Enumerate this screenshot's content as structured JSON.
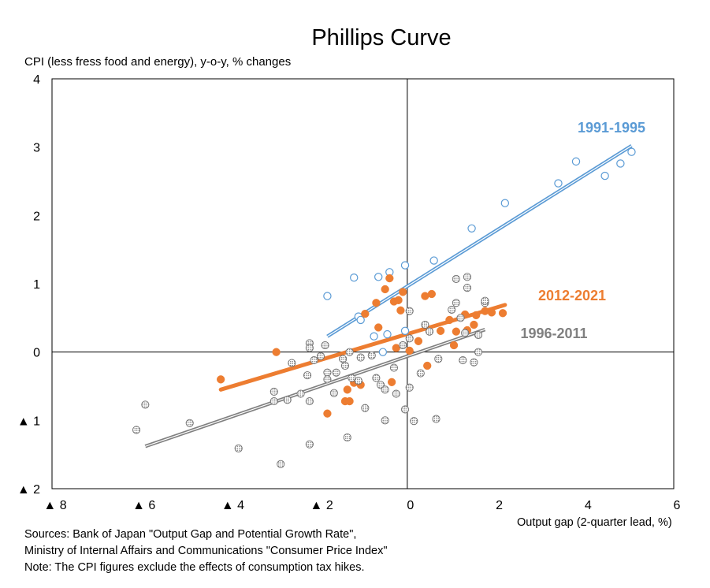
{
  "chart_data": {
    "type": "scatter",
    "title": "Phillips Curve",
    "ylabel": "CPI (less fress food and energy), y-o-y, % changes",
    "xlabel": "Output gap (2-quarter lead, %)",
    "xlim": [
      -8,
      6
    ],
    "ylim": [
      -2,
      4
    ],
    "x_ticks": [
      -8,
      -6,
      -4,
      -2,
      0,
      2,
      4,
      6
    ],
    "y_ticks": [
      4,
      3,
      2,
      1,
      0,
      -1,
      -2
    ],
    "x_tick_labels": [
      "▲ 8",
      "▲ 6",
      "▲ 4",
      "▲ 2",
      "0",
      "2",
      "4",
      "6"
    ],
    "y_tick_labels": [
      "4",
      "3",
      "2",
      "1",
      "0",
      "▲ 1",
      "▲ 2"
    ],
    "grid": false,
    "series": [
      {
        "name": "1991-1995",
        "color": "#5b9bd5",
        "marker": "open-circle",
        "points": [
          [
            -1.8,
            0.82
          ],
          [
            -1.2,
            1.09
          ],
          [
            -1.1,
            0.52
          ],
          [
            -1.05,
            0.47
          ],
          [
            -0.75,
            0.23
          ],
          [
            -0.65,
            1.1
          ],
          [
            -0.55,
            0.0
          ],
          [
            -0.45,
            0.26
          ],
          [
            -0.4,
            1.17
          ],
          [
            -0.05,
            1.27
          ],
          [
            -0.05,
            0.31
          ],
          [
            0.6,
            1.34
          ],
          [
            1.45,
            1.81
          ],
          [
            2.2,
            2.18
          ],
          [
            3.4,
            2.47
          ],
          [
            3.8,
            2.79
          ],
          [
            4.45,
            2.58
          ],
          [
            4.8,
            2.76
          ],
          [
            5.05,
            2.93
          ]
        ],
        "fit": [
          [
            -1.8,
            0.23
          ],
          [
            5.05,
            3.02
          ]
        ]
      },
      {
        "name": "2012-2021",
        "color": "#ed7d31",
        "marker": "filled-circle",
        "points": [
          [
            -4.2,
            -0.4
          ],
          [
            -2.95,
            0.0
          ],
          [
            -1.8,
            -0.9
          ],
          [
            -1.4,
            -0.72
          ],
          [
            -1.35,
            -0.55
          ],
          [
            -1.3,
            -0.72
          ],
          [
            -1.2,
            -0.45
          ],
          [
            -1.05,
            -0.48
          ],
          [
            -0.95,
            0.56
          ],
          [
            -0.7,
            0.72
          ],
          [
            -0.65,
            0.36
          ],
          [
            -0.5,
            0.92
          ],
          [
            -0.4,
            1.08
          ],
          [
            -0.35,
            -0.44
          ],
          [
            -0.3,
            0.74
          ],
          [
            -0.25,
            0.06
          ],
          [
            -0.2,
            0.76
          ],
          [
            -0.15,
            0.61
          ],
          [
            -0.1,
            0.88
          ],
          [
            0.05,
            0.02
          ],
          [
            0.25,
            0.16
          ],
          [
            0.4,
            0.82
          ],
          [
            0.45,
            -0.2
          ],
          [
            0.55,
            0.85
          ],
          [
            0.75,
            0.31
          ],
          [
            0.95,
            0.47
          ],
          [
            1.05,
            0.1
          ],
          [
            1.1,
            0.3
          ],
          [
            1.3,
            0.55
          ],
          [
            1.35,
            0.32
          ],
          [
            1.5,
            0.4
          ],
          [
            1.55,
            0.54
          ],
          [
            1.75,
            0.6
          ],
          [
            1.9,
            0.58
          ],
          [
            2.15,
            0.57
          ]
        ],
        "fit": [
          [
            -4.2,
            -0.55
          ],
          [
            2.2,
            0.69
          ]
        ]
      },
      {
        "name": "1996-2011",
        "color": "#808080",
        "marker": "hatched-circle",
        "points": [
          [
            -5.9,
            -0.77
          ],
          [
            -6.1,
            -1.14
          ],
          [
            -4.9,
            -1.04
          ],
          [
            -3.8,
            -1.41
          ],
          [
            -3.0,
            -0.58
          ],
          [
            -3.0,
            -0.72
          ],
          [
            -2.85,
            -1.64
          ],
          [
            -2.7,
            -0.7
          ],
          [
            -2.6,
            -0.16
          ],
          [
            -2.4,
            -0.61
          ],
          [
            -2.25,
            -0.34
          ],
          [
            -2.2,
            -0.72
          ],
          [
            -2.2,
            0.13
          ],
          [
            -2.2,
            0.06
          ],
          [
            -2.2,
            -1.35
          ],
          [
            -2.1,
            -0.12
          ],
          [
            -1.95,
            -0.06
          ],
          [
            -1.85,
            0.1
          ],
          [
            -1.8,
            -0.3
          ],
          [
            -1.8,
            -0.4
          ],
          [
            -1.65,
            -0.6
          ],
          [
            -1.6,
            -0.3
          ],
          [
            -1.45,
            -0.1
          ],
          [
            -1.4,
            -0.2
          ],
          [
            -1.35,
            -1.25
          ],
          [
            -1.3,
            0.0
          ],
          [
            -1.25,
            -0.38
          ],
          [
            -1.1,
            -0.42
          ],
          [
            -1.05,
            -0.08
          ],
          [
            -0.95,
            -0.82
          ],
          [
            -0.8,
            -0.05
          ],
          [
            -0.7,
            -0.38
          ],
          [
            -0.6,
            -0.48
          ],
          [
            -0.5,
            -1.0
          ],
          [
            -0.5,
            -0.55
          ],
          [
            -0.3,
            -0.23
          ],
          [
            -0.25,
            -0.61
          ],
          [
            -0.1,
            0.1
          ],
          [
            -0.05,
            -0.84
          ],
          [
            0.05,
            -0.52
          ],
          [
            0.05,
            0.2
          ],
          [
            0.05,
            0.6
          ],
          [
            0.15,
            -1.01
          ],
          [
            0.3,
            -0.31
          ],
          [
            0.4,
            0.4
          ],
          [
            0.5,
            0.3
          ],
          [
            0.65,
            -0.98
          ],
          [
            0.7,
            -0.1
          ],
          [
            1.0,
            0.62
          ],
          [
            1.1,
            1.07
          ],
          [
            1.1,
            0.72
          ],
          [
            1.2,
            0.5
          ],
          [
            1.25,
            -0.12
          ],
          [
            1.3,
            0.28
          ],
          [
            1.35,
            1.1
          ],
          [
            1.35,
            0.94
          ],
          [
            1.5,
            -0.15
          ],
          [
            1.6,
            0.25
          ],
          [
            1.6,
            0.0
          ],
          [
            1.75,
            0.72
          ],
          [
            1.75,
            0.75
          ]
        ],
        "fit": [
          [
            -5.9,
            -1.38
          ],
          [
            1.75,
            0.33
          ]
        ]
      }
    ]
  },
  "notes": [
    "Sources: Bank of Japan \"Output Gap and Potential Growth Rate\",",
    "Ministry of Internal Affairs and Communications \"Consumer Price Index\"",
    "Note: The CPI figures exclude the effects of consumption tax hikes."
  ]
}
